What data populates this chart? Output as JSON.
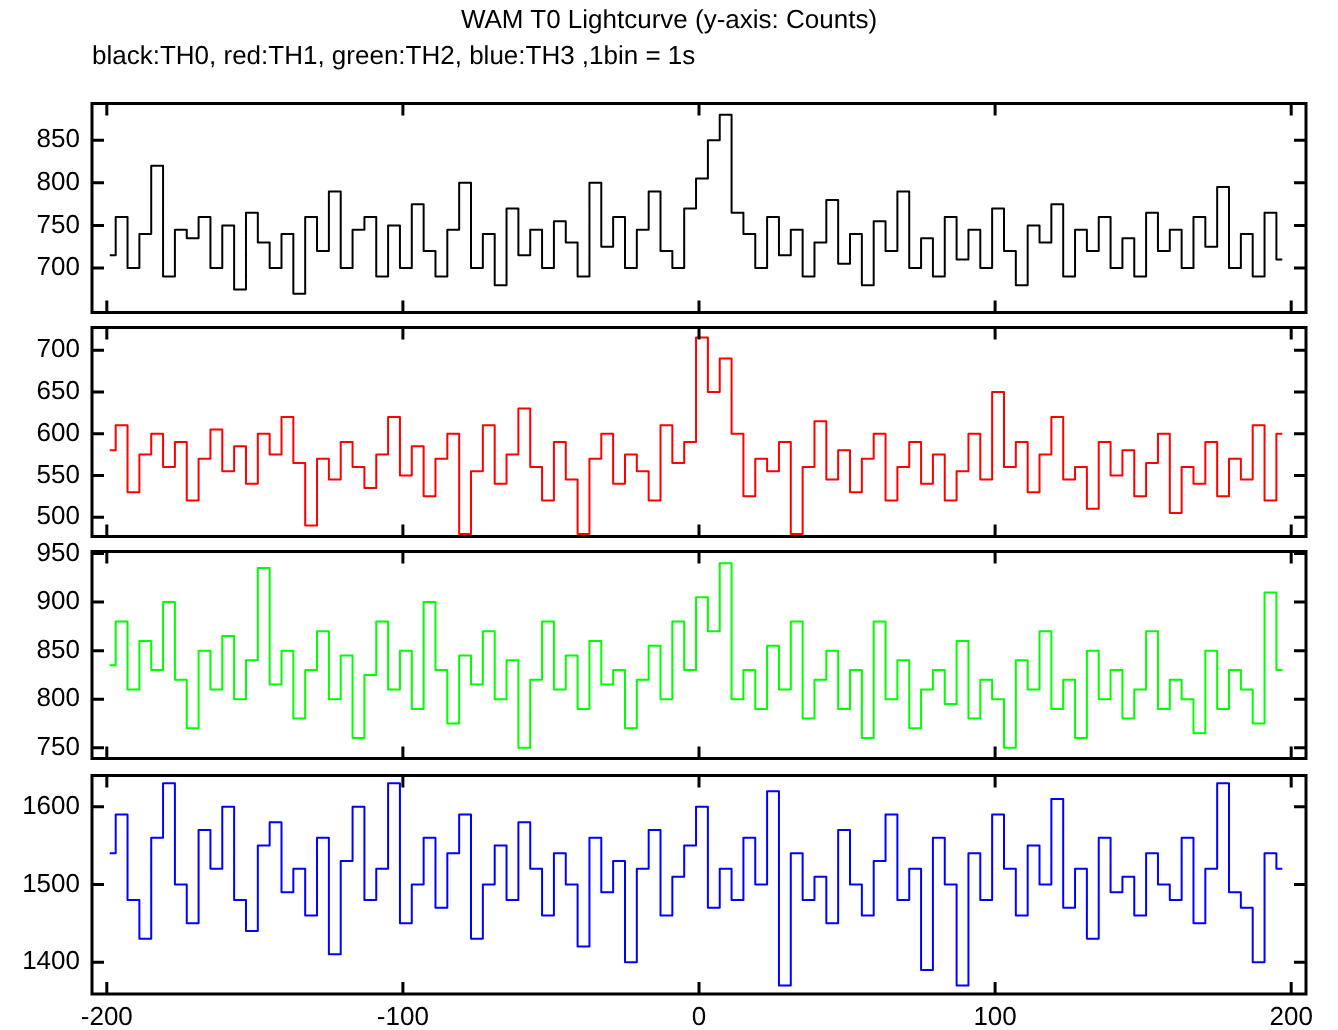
{
  "chart_data": [
    {
      "type": "step",
      "title": "WAM T0 Lightcurve (y-axis: Counts)",
      "subtitle": "black:TH0, red:TH1, green:TH2, blue:TH3 ,1bin = 1s",
      "marker": "none",
      "tick_labels": "y",
      "xlim": [
        -205,
        205
      ],
      "xticks": [
        -200,
        -100,
        0,
        100,
        200
      ],
      "ylim": [
        648,
        893
      ],
      "yticks": [
        700,
        750,
        800,
        850
      ],
      "x": [
        -199,
        -195,
        -191,
        -187,
        -183,
        -179,
        -175,
        -171,
        -167,
        -163,
        -159,
        -155,
        -151,
        -147,
        -143,
        -139,
        -135,
        -131,
        -127,
        -123,
        -119,
        -115,
        -111,
        -107,
        -103,
        -99,
        -95,
        -91,
        -87,
        -83,
        -79,
        -75,
        -71,
        -67,
        -63,
        -59,
        -55,
        -51,
        -47,
        -43,
        -39,
        -35,
        -31,
        -27,
        -23,
        -19,
        -15,
        -11,
        -7,
        -3,
        1,
        5,
        9,
        13,
        17,
        21,
        25,
        29,
        33,
        37,
        41,
        45,
        49,
        53,
        57,
        61,
        65,
        69,
        73,
        77,
        81,
        85,
        89,
        93,
        97,
        101,
        105,
        109,
        113,
        117,
        121,
        125,
        129,
        133,
        137,
        141,
        145,
        149,
        153,
        157,
        161,
        165,
        169,
        173,
        177,
        181,
        185,
        189,
        193,
        197
      ],
      "series": [
        {
          "color": "#000000",
          "values": [
            715,
            760,
            700,
            740,
            820,
            690,
            745,
            735,
            760,
            700,
            750,
            675,
            765,
            730,
            700,
            740,
            670,
            760,
            720,
            790,
            700,
            745,
            760,
            690,
            750,
            700,
            775,
            720,
            690,
            745,
            800,
            700,
            740,
            680,
            770,
            715,
            745,
            700,
            755,
            730,
            690,
            800,
            725,
            760,
            700,
            745,
            790,
            720,
            700,
            770,
            805,
            850,
            880,
            765,
            740,
            700,
            760,
            715,
            745,
            690,
            730,
            780,
            705,
            740,
            680,
            755,
            720,
            790,
            700,
            735,
            690,
            760,
            710,
            745,
            700,
            770,
            720,
            680,
            750,
            730,
            775,
            690,
            745,
            720,
            760,
            700,
            735,
            690,
            765,
            720,
            745,
            700,
            760,
            725,
            795,
            700,
            740,
            690,
            765,
            710
          ]
        }
      ]
    },
    {
      "type": "step",
      "marker": "none",
      "tick_labels": "y",
      "xlim": [
        -205,
        205
      ],
      "xticks": [
        -200,
        -100,
        0,
        100,
        200
      ],
      "ylim": [
        477,
        727
      ],
      "yticks": [
        500,
        550,
        600,
        650,
        700
      ],
      "x": [
        -199,
        -195,
        -191,
        -187,
        -183,
        -179,
        -175,
        -171,
        -167,
        -163,
        -159,
        -155,
        -151,
        -147,
        -143,
        -139,
        -135,
        -131,
        -127,
        -123,
        -119,
        -115,
        -111,
        -107,
        -103,
        -99,
        -95,
        -91,
        -87,
        -83,
        -79,
        -75,
        -71,
        -67,
        -63,
        -59,
        -55,
        -51,
        -47,
        -43,
        -39,
        -35,
        -31,
        -27,
        -23,
        -19,
        -15,
        -11,
        -7,
        -3,
        1,
        5,
        9,
        13,
        17,
        21,
        25,
        29,
        33,
        37,
        41,
        45,
        49,
        53,
        57,
        61,
        65,
        69,
        73,
        77,
        81,
        85,
        89,
        93,
        97,
        101,
        105,
        109,
        113,
        117,
        121,
        125,
        129,
        133,
        137,
        141,
        145,
        149,
        153,
        157,
        161,
        165,
        169,
        173,
        177,
        181,
        185,
        189,
        193,
        197
      ],
      "series": [
        {
          "color": "#ff0000",
          "values": [
            580,
            610,
            530,
            575,
            600,
            560,
            590,
            520,
            570,
            605,
            555,
            585,
            540,
            600,
            575,
            620,
            565,
            490,
            570,
            545,
            590,
            560,
            535,
            575,
            620,
            550,
            585,
            525,
            570,
            600,
            480,
            555,
            610,
            540,
            575,
            630,
            560,
            520,
            590,
            545,
            480,
            570,
            600,
            540,
            575,
            555,
            520,
            610,
            565,
            590,
            715,
            650,
            690,
            600,
            525,
            570,
            555,
            590,
            480,
            560,
            615,
            545,
            580,
            530,
            570,
            600,
            520,
            560,
            590,
            540,
            575,
            520,
            555,
            600,
            545,
            650,
            560,
            590,
            530,
            575,
            620,
            545,
            560,
            510,
            590,
            550,
            580,
            525,
            565,
            600,
            505,
            560,
            540,
            590,
            525,
            570,
            545,
            610,
            520,
            600
          ]
        }
      ]
    },
    {
      "type": "step",
      "marker": "none",
      "tick_labels": "y",
      "xlim": [
        -205,
        205
      ],
      "xticks": [
        -200,
        -100,
        0,
        100,
        200
      ],
      "ylim": [
        739,
        952
      ],
      "yticks": [
        750,
        800,
        850,
        900,
        950
      ],
      "x": [
        -199,
        -195,
        -191,
        -187,
        -183,
        -179,
        -175,
        -171,
        -167,
        -163,
        -159,
        -155,
        -151,
        -147,
        -143,
        -139,
        -135,
        -131,
        -127,
        -123,
        -119,
        -115,
        -111,
        -107,
        -103,
        -99,
        -95,
        -91,
        -87,
        -83,
        -79,
        -75,
        -71,
        -67,
        -63,
        -59,
        -55,
        -51,
        -47,
        -43,
        -39,
        -35,
        -31,
        -27,
        -23,
        -19,
        -15,
        -11,
        -7,
        -3,
        1,
        5,
        9,
        13,
        17,
        21,
        25,
        29,
        33,
        37,
        41,
        45,
        49,
        53,
        57,
        61,
        65,
        69,
        73,
        77,
        81,
        85,
        89,
        93,
        97,
        101,
        105,
        109,
        113,
        117,
        121,
        125,
        129,
        133,
        137,
        141,
        145,
        149,
        153,
        157,
        161,
        165,
        169,
        173,
        177,
        181,
        185,
        189,
        193,
        197
      ],
      "series": [
        {
          "color": "#00ff00",
          "values": [
            835,
            880,
            810,
            860,
            830,
            900,
            820,
            770,
            850,
            810,
            865,
            800,
            840,
            935,
            815,
            850,
            780,
            830,
            870,
            800,
            845,
            760,
            825,
            880,
            810,
            850,
            790,
            900,
            830,
            775,
            845,
            815,
            870,
            800,
            840,
            750,
            820,
            880,
            810,
            845,
            790,
            860,
            815,
            830,
            770,
            820,
            855,
            800,
            880,
            830,
            905,
            870,
            940,
            800,
            830,
            790,
            855,
            810,
            880,
            780,
            820,
            850,
            790,
            830,
            760,
            880,
            800,
            840,
            770,
            810,
            830,
            795,
            860,
            780,
            820,
            800,
            750,
            840,
            810,
            870,
            790,
            820,
            760,
            850,
            800,
            830,
            780,
            810,
            870,
            790,
            820,
            800,
            765,
            850,
            790,
            830,
            810,
            775,
            910,
            830
          ]
        }
      ]
    },
    {
      "type": "step",
      "marker": "none",
      "xlim": [
        -205,
        205
      ],
      "xticks": [
        -200,
        -100,
        0,
        100,
        200
      ],
      "ylim": [
        1359,
        1640
      ],
      "yticks": [
        1400,
        1500,
        1600
      ],
      "x": [
        -199,
        -195,
        -191,
        -187,
        -183,
        -179,
        -175,
        -171,
        -167,
        -163,
        -159,
        -155,
        -151,
        -147,
        -143,
        -139,
        -135,
        -131,
        -127,
        -123,
        -119,
        -115,
        -111,
        -107,
        -103,
        -99,
        -95,
        -91,
        -87,
        -83,
        -79,
        -75,
        -71,
        -67,
        -63,
        -59,
        -55,
        -51,
        -47,
        -43,
        -39,
        -35,
        -31,
        -27,
        -23,
        -19,
        -15,
        -11,
        -7,
        -3,
        1,
        5,
        9,
        13,
        17,
        21,
        25,
        29,
        33,
        37,
        41,
        45,
        49,
        53,
        57,
        61,
        65,
        69,
        73,
        77,
        81,
        85,
        89,
        93,
        97,
        101,
        105,
        109,
        113,
        117,
        121,
        125,
        129,
        133,
        137,
        141,
        145,
        149,
        153,
        157,
        161,
        165,
        169,
        173,
        177,
        181,
        185,
        189,
        193,
        197
      ],
      "series": [
        {
          "color": "#0000ff",
          "values": [
            1540,
            1590,
            1480,
            1430,
            1560,
            1630,
            1500,
            1450,
            1570,
            1520,
            1600,
            1480,
            1440,
            1550,
            1580,
            1490,
            1520,
            1460,
            1560,
            1410,
            1530,
            1600,
            1480,
            1520,
            1630,
            1450,
            1500,
            1560,
            1470,
            1540,
            1590,
            1430,
            1500,
            1550,
            1480,
            1580,
            1520,
            1460,
            1540,
            1500,
            1420,
            1560,
            1490,
            1530,
            1400,
            1520,
            1570,
            1460,
            1510,
            1550,
            1600,
            1470,
            1520,
            1480,
            1560,
            1500,
            1620,
            1370,
            1540,
            1480,
            1510,
            1450,
            1570,
            1500,
            1460,
            1530,
            1590,
            1480,
            1520,
            1390,
            1560,
            1500,
            1370,
            1540,
            1480,
            1590,
            1520,
            1460,
            1550,
            1500,
            1610,
            1470,
            1520,
            1430,
            1560,
            1490,
            1510,
            1460,
            1540,
            1500,
            1480,
            1560,
            1450,
            1520,
            1630,
            1490,
            1470,
            1400,
            1540,
            1520
          ]
        }
      ]
    }
  ]
}
